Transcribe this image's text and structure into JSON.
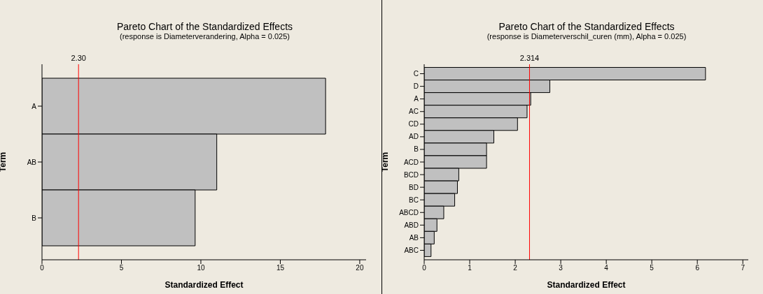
{
  "chart_data": [
    {
      "type": "bar",
      "orientation": "horizontal",
      "title": "Pareto Chart of the Standardized Effects",
      "subtitle": "(response is Diameterverandering, Alpha = 0.025)",
      "xlabel": "Standardized Effect",
      "ylabel": "Term",
      "categories": [
        "A",
        "AB",
        "B"
      ],
      "values": [
        17.85,
        11.0,
        9.64
      ],
      "color": "#c0c0c0",
      "xlim": [
        0,
        20.4
      ],
      "xticks": [
        0,
        5,
        10,
        15,
        20
      ],
      "ref_lines": [
        {
          "axis": "x",
          "value": 2.3,
          "label": "2.30",
          "color": "#ff0000"
        }
      ]
    },
    {
      "type": "bar",
      "orientation": "horizontal",
      "title": "Pareto Chart of the Standardized Effects",
      "subtitle": "(response is Diameterverschil_curen (mm), Alpha = 0.025)",
      "xlabel": "Standardized Effect",
      "ylabel": "Term",
      "categories": [
        "C",
        "D",
        "A",
        "AC",
        "CD",
        "AD",
        "B",
        "ACD",
        "BCD",
        "BD",
        "BC",
        "ABCD",
        "ABD",
        "AB",
        "ABC"
      ],
      "values": [
        6.18,
        2.76,
        2.34,
        2.26,
        2.05,
        1.53,
        1.37,
        1.37,
        0.76,
        0.73,
        0.67,
        0.43,
        0.28,
        0.22,
        0.15
      ],
      "color": "#c0c0c0",
      "xlim": [
        0,
        7.12
      ],
      "xticks": [
        0,
        1,
        2,
        3,
        4,
        5,
        6,
        7
      ],
      "ref_lines": [
        {
          "axis": "x",
          "value": 2.314,
          "label": "2.314",
          "color": "#ff0000"
        }
      ]
    }
  ]
}
